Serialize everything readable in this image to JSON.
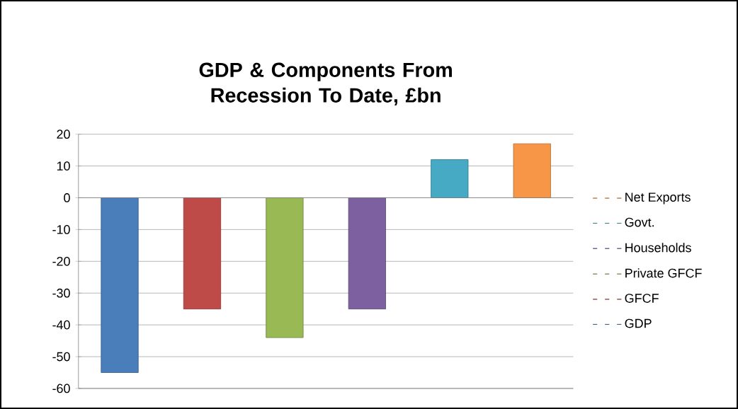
{
  "chart_data": {
    "type": "bar",
    "title": "GDP & Components From Recession To Date, £bn",
    "categories": [
      null,
      null,
      null,
      null,
      null,
      null
    ],
    "series": [
      {
        "name": "GDP",
        "color": "#4a7ebb",
        "values": [
          -55,
          null,
          null,
          null,
          null,
          null
        ]
      },
      {
        "name": "GFCF",
        "color": "#be4b48",
        "values": [
          null,
          -35,
          null,
          null,
          null,
          null
        ]
      },
      {
        "name": "Private GFCF",
        "color": "#98b954",
        "values": [
          null,
          null,
          -44,
          null,
          null,
          null
        ]
      },
      {
        "name": "Households",
        "color": "#7d60a0",
        "values": [
          null,
          null,
          null,
          -35,
          null,
          null
        ]
      },
      {
        "name": "Govt.",
        "color": "#46aac5",
        "values": [
          null,
          null,
          null,
          null,
          12,
          null
        ]
      },
      {
        "name": "Net Exports",
        "color": "#f79646",
        "values": [
          null,
          null,
          null,
          null,
          null,
          17
        ]
      }
    ],
    "ylim": [
      -60,
      20
    ],
    "yticks": [
      -60,
      -50,
      -40,
      -30,
      -20,
      -10,
      0,
      10,
      20
    ],
    "grid": "y",
    "legend": "right"
  }
}
